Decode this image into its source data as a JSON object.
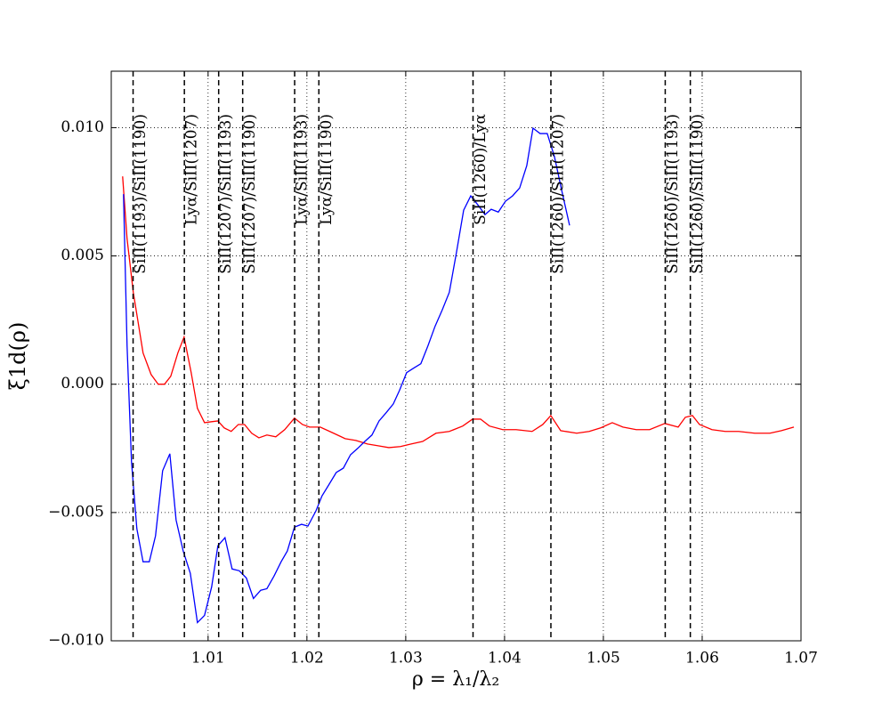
{
  "chart_data": {
    "type": "line",
    "xlabel": "ρ = λ₁/λ₂",
    "ylabel": "ξ1d(ρ)",
    "xlim": [
      1.0002,
      1.07
    ],
    "ylim": [
      -0.01,
      0.0122
    ],
    "xticks": [
      1.01,
      1.02,
      1.03,
      1.04,
      1.05,
      1.06,
      1.07
    ],
    "yticks": [
      {
        "value": -0.01,
        "label": "−0.010"
      },
      {
        "value": -0.005,
        "label": "−0.005"
      },
      {
        "value": 0,
        "label": "0.000"
      },
      {
        "value": 0.005,
        "label": "0.005"
      },
      {
        "value": 0.01,
        "label": "0.010"
      }
    ],
    "grid": true,
    "series": [
      {
        "color": "#ff0000",
        "x": [
          1.00135,
          1.0018,
          1.00243,
          1.00342,
          1.00423,
          1.00495,
          1.00559,
          1.00622,
          1.00694,
          1.00757,
          1.00829,
          1.00892,
          1.00964,
          1.01036,
          1.01099,
          1.01162,
          1.01234,
          1.01306,
          1.01369,
          1.01441,
          1.01514,
          1.01595,
          1.01685,
          1.01775,
          1.01874,
          1.01955,
          1.02027,
          1.02135,
          1.0227,
          1.02387,
          1.02495,
          1.02613,
          1.02721,
          1.02829,
          1.02946,
          1.03054,
          1.03171,
          1.03306,
          1.03441,
          1.03577,
          1.03676,
          1.03757,
          1.03847,
          1.03982,
          1.04117,
          1.04279,
          1.04387,
          1.04468,
          1.04568,
          1.0473,
          1.04856,
          1.04973,
          1.0509,
          1.05198,
          1.05333,
          1.05468,
          1.05622,
          1.05757,
          1.05829,
          1.05901,
          1.05973,
          1.06099,
          1.06234,
          1.06369,
          1.06532,
          1.06685,
          1.06802,
          1.06928
        ],
        "values": [
          0.0081,
          0.00567,
          0.00358,
          0.00122,
          0.00038,
          0.0,
          0.0,
          0.00031,
          0.00122,
          0.00184,
          0.00045,
          -0.00094,
          -0.0015,
          -0.00146,
          -0.00143,
          -0.0017,
          -0.00184,
          -0.00157,
          -0.00157,
          -0.00191,
          -0.00209,
          -0.00198,
          -0.00205,
          -0.00177,
          -0.00132,
          -0.00157,
          -0.00167,
          -0.00167,
          -0.00191,
          -0.00212,
          -0.00219,
          -0.00233,
          -0.0024,
          -0.00247,
          -0.00243,
          -0.00233,
          -0.00223,
          -0.00191,
          -0.00184,
          -0.00163,
          -0.00136,
          -0.00136,
          -0.00163,
          -0.00177,
          -0.00177,
          -0.00184,
          -0.00157,
          -0.00122,
          -0.00181,
          -0.00191,
          -0.00184,
          -0.0017,
          -0.0015,
          -0.00167,
          -0.00177,
          -0.00177,
          -0.00153,
          -0.00167,
          -0.00129,
          -0.00122,
          -0.00157,
          -0.00177,
          -0.00184,
          -0.00184,
          -0.00191,
          -0.00191,
          -0.00181,
          -0.00167
        ]
      },
      {
        "color": "#0000ff",
        "x": [
          1.00144,
          1.0018,
          1.00225,
          1.00279,
          1.00342,
          1.00405,
          1.00468,
          1.0054,
          1.00613,
          1.00676,
          1.00748,
          1.0082,
          1.00892,
          1.00964,
          1.01036,
          1.01099,
          1.01171,
          1.01243,
          1.01315,
          1.01387,
          1.01459,
          1.01532,
          1.01595,
          1.01667,
          1.01739,
          1.01802,
          1.01874,
          1.01946,
          1.0201,
          1.02091,
          1.02153,
          1.02225,
          1.02297,
          1.02369,
          1.02441,
          1.02514,
          1.02586,
          1.02658,
          1.0273,
          1.02802,
          1.02874,
          1.02937,
          1.03009,
          1.03081,
          1.03153,
          1.03225,
          1.03297,
          1.03369,
          1.03441,
          1.03514,
          1.03586,
          1.03658,
          1.0373,
          1.03802,
          1.03865,
          1.03937,
          1.04009,
          1.04081,
          1.04153,
          1.04225,
          1.04288,
          1.0436,
          1.04432,
          1.04505,
          1.04577,
          1.04658
        ],
        "values": [
          0.00741,
          0.0015,
          -0.00303,
          -0.00563,
          -0.00692,
          -0.00692,
          -0.00591,
          -0.00337,
          -0.00271,
          -0.00529,
          -0.0065,
          -0.00737,
          -0.00929,
          -0.00901,
          -0.0079,
          -0.0063,
          -0.00598,
          -0.0072,
          -0.00727,
          -0.00755,
          -0.00835,
          -0.00803,
          -0.00797,
          -0.00748,
          -0.00692,
          -0.0065,
          -0.00557,
          -0.00546,
          -0.00553,
          -0.00494,
          -0.00435,
          -0.0039,
          -0.00344,
          -0.00327,
          -0.00275,
          -0.0025,
          -0.00223,
          -0.00198,
          -0.00143,
          -0.00111,
          -0.00077,
          -0.00024,
          0.00045,
          0.00063,
          0.0008,
          0.0015,
          0.00226,
          0.00289,
          0.00358,
          0.00515,
          0.00678,
          0.00734,
          0.00699,
          0.00661,
          0.00682,
          0.00671,
          0.00713,
          0.00734,
          0.00765,
          0.00852,
          0.00998,
          0.00977,
          0.00977,
          0.00887,
          0.00758,
          0.00619
        ]
      }
    ],
    "vlines": [
      {
        "x": 1.00241,
        "label": "SiII(1193)/SiII(1190)"
      },
      {
        "x": 1.0076,
        "label": "Lyα/SiII(1207)"
      },
      {
        "x": 1.01107,
        "label": "SiII(1207)/SiII(1193)"
      },
      {
        "x": 1.0135,
        "label": "SiII(1207)/SiII(1190)"
      },
      {
        "x": 1.01876,
        "label": "Lyα/SiII(1193)"
      },
      {
        "x": 1.02121,
        "label": "Lyα/SiII(1190)"
      },
      {
        "x": 1.03681,
        "label": "SiII(1260)/Lyα"
      },
      {
        "x": 1.04469,
        "label": "SiII(1260)/SiII(1207)"
      },
      {
        "x": 1.05626,
        "label": "SiII(1260)/SiII(1193)"
      },
      {
        "x": 1.0588,
        "label": "SiII(1260)/SiII(1190)"
      }
    ]
  }
}
